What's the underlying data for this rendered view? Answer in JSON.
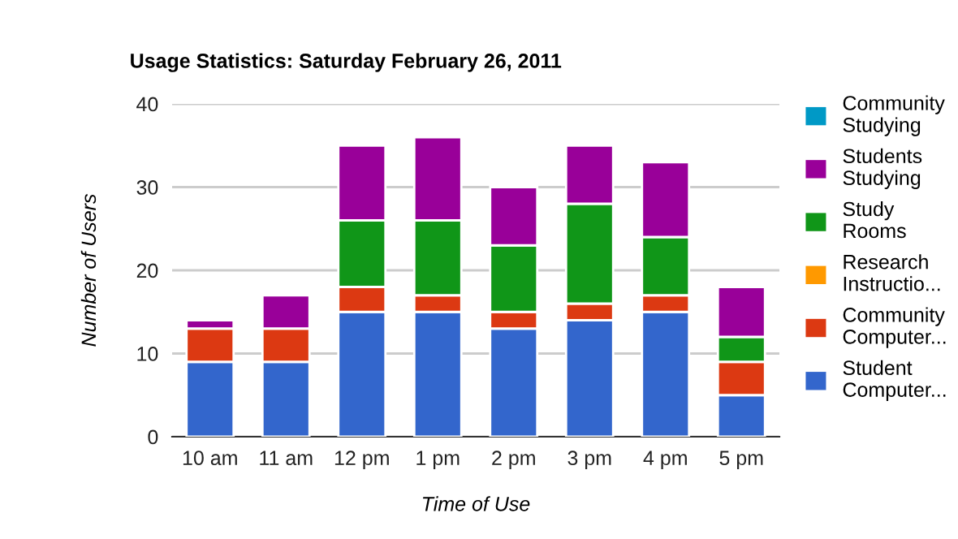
{
  "chart_data": {
    "type": "bar",
    "title": "Usage Statistics: Saturday February 26, 2011",
    "xlabel": "Time of Use",
    "ylabel": "Number of Users",
    "categories": [
      "10 am",
      "11 am",
      "12 pm",
      "1 pm",
      "2 pm",
      "3 pm",
      "4 pm",
      "5 pm"
    ],
    "stacked": true,
    "ylim": [
      0,
      40
    ],
    "yticks": [
      0,
      10,
      20,
      30,
      40
    ],
    "grid": "y",
    "legend": "right",
    "series": [
      {
        "name": "Student Computer...",
        "color": "#3366cc",
        "values": [
          9,
          9,
          15,
          15,
          13,
          14,
          15,
          5
        ]
      },
      {
        "name": "Community Computer...",
        "color": "#dc3912",
        "values": [
          4,
          4,
          3,
          2,
          2,
          2,
          2,
          4
        ]
      },
      {
        "name": "Research Instructio...",
        "color": "#ff9900",
        "values": [
          0,
          0,
          0,
          0,
          0,
          0,
          0,
          0
        ]
      },
      {
        "name": "Study Rooms",
        "color": "#109618",
        "values": [
          0,
          0,
          8,
          9,
          8,
          12,
          7,
          3
        ]
      },
      {
        "name": "Students Studying",
        "color": "#990099",
        "values": [
          1,
          4,
          9,
          10,
          7,
          7,
          9,
          6
        ]
      },
      {
        "name": "Community Studying",
        "color": "#0099c6",
        "values": [
          0,
          0,
          0,
          0,
          0,
          0,
          0,
          0
        ]
      }
    ]
  }
}
